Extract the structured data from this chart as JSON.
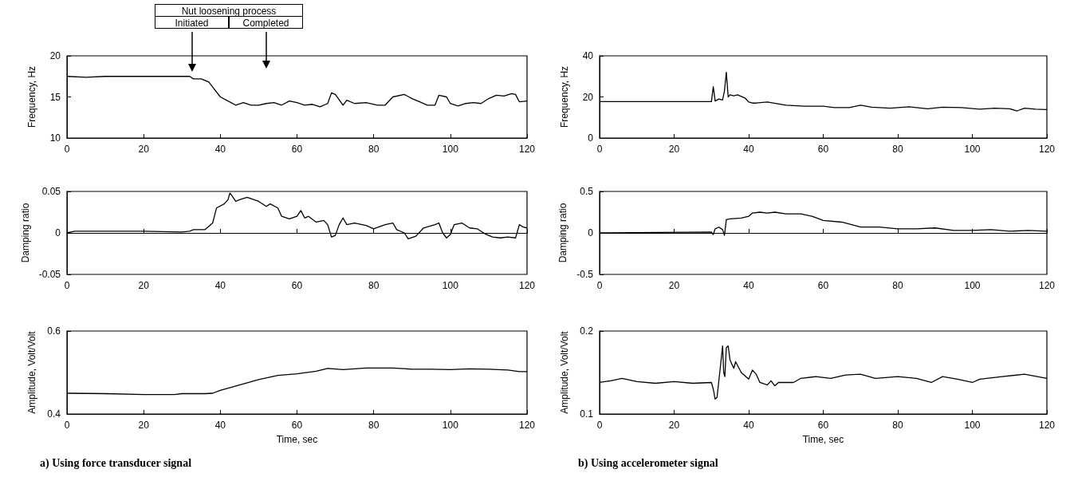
{
  "chart_data": [
    {
      "type": "line",
      "ylabel": "Frequency, Hz",
      "xlim": [
        0,
        120
      ],
      "xticks": [
        0,
        20,
        40,
        60,
        80,
        100,
        120
      ],
      "ylim": [
        10,
        20
      ],
      "yticks": [
        10,
        15,
        20
      ],
      "annotations": [
        "Nut loosening process",
        "Initiated",
        "Completed"
      ],
      "series": [
        {
          "color": "#000000",
          "x": [
            0,
            5,
            10,
            20,
            30,
            32,
            33,
            35,
            37,
            38,
            40,
            42,
            44,
            46,
            48,
            50,
            52,
            54,
            56,
            58,
            60,
            62,
            64,
            66,
            68,
            69,
            70,
            72,
            73,
            75,
            78,
            81,
            83,
            85,
            88,
            90,
            92,
            94,
            96,
            97,
            99,
            100,
            102,
            104,
            106,
            108,
            110,
            112,
            114,
            116,
            117,
            118,
            120
          ],
          "values": [
            17.5,
            17.4,
            17.5,
            17.5,
            17.5,
            17.5,
            17.2,
            17.2,
            16.8,
            16.2,
            15.0,
            14.5,
            14.0,
            14.3,
            14.0,
            14.0,
            14.2,
            14.3,
            14.0,
            14.5,
            14.3,
            14.0,
            14.1,
            13.8,
            14.2,
            15.5,
            15.3,
            14.0,
            14.6,
            14.2,
            14.3,
            14.0,
            14.0,
            15.0,
            15.3,
            14.8,
            14.4,
            14.0,
            14.0,
            15.2,
            15.0,
            14.2,
            13.9,
            14.2,
            14.3,
            14.2,
            14.8,
            15.2,
            15.1,
            15.4,
            15.3,
            14.4,
            14.5
          ]
        }
      ]
    },
    {
      "type": "line",
      "ylabel": "Frequency, Hz",
      "xlim": [
        0,
        120
      ],
      "xticks": [
        0,
        20,
        40,
        60,
        80,
        100,
        120
      ],
      "ylim": [
        0,
        40
      ],
      "yticks": [
        0,
        20,
        40
      ],
      "series": [
        {
          "color": "#000000",
          "x": [
            0,
            30,
            30.5,
            31,
            32,
            33,
            33.5,
            34,
            34.5,
            35,
            36,
            37,
            39,
            40,
            41,
            42,
            45,
            50,
            55,
            60,
            63,
            67,
            70,
            73,
            78,
            83,
            88,
            92,
            97,
            102,
            106,
            110,
            112,
            114,
            117,
            120
          ],
          "values": [
            17.7,
            17.7,
            25,
            18,
            19,
            18.5,
            23,
            32,
            20,
            21,
            20.5,
            21,
            19.5,
            17.5,
            17,
            17,
            17.5,
            16,
            15.5,
            15.5,
            14.8,
            14.8,
            16,
            15,
            14.5,
            15.2,
            14.2,
            15,
            14.8,
            14,
            14.5,
            14.2,
            13.2,
            14.5,
            14,
            13.8
          ]
        }
      ]
    },
    {
      "type": "line",
      "ylabel": "Damping ratio",
      "xlim": [
        0,
        120
      ],
      "xticks": [
        0,
        20,
        40,
        60,
        80,
        100,
        120
      ],
      "ylim": [
        -0.05,
        0.05
      ],
      "yticks": [
        -0.05,
        0,
        0.05
      ],
      "series": [
        {
          "color": "#000000",
          "x": [
            0,
            2,
            10,
            20,
            30,
            32,
            33,
            36,
            37,
            38,
            39,
            41,
            42,
            42.5,
            43,
            44,
            45,
            47,
            50,
            52,
            53,
            55,
            56,
            58,
            60,
            61,
            62,
            63,
            65,
            67,
            68,
            69,
            70,
            71,
            72,
            73,
            75,
            78,
            80,
            83,
            85,
            86,
            88,
            89,
            91,
            93,
            96,
            97,
            98,
            99,
            100,
            101,
            103,
            105,
            107,
            109,
            111,
            113,
            115,
            117,
            118,
            119,
            120
          ],
          "values": [
            0.0,
            0.002,
            0.002,
            0.002,
            0.001,
            0.002,
            0.004,
            0.004,
            0.008,
            0.012,
            0.03,
            0.035,
            0.04,
            0.048,
            0.045,
            0.038,
            0.04,
            0.043,
            0.038,
            0.032,
            0.035,
            0.03,
            0.02,
            0.017,
            0.02,
            0.027,
            0.018,
            0.02,
            0.013,
            0.015,
            0.01,
            -0.005,
            -0.003,
            0.01,
            0.018,
            0.01,
            0.012,
            0.009,
            0.005,
            0.01,
            0.012,
            0.004,
            0.0,
            -0.007,
            -0.004,
            0.006,
            0.01,
            0.012,
            0.0,
            -0.006,
            -0.002,
            0.01,
            0.012,
            0.006,
            0.005,
            -0.001,
            -0.005,
            -0.006,
            -0.005,
            -0.006,
            0.01,
            0.007,
            0.006
          ]
        }
      ]
    },
    {
      "type": "line",
      "ylabel": "Damping ratio",
      "xlim": [
        0,
        120
      ],
      "xticks": [
        0,
        20,
        40,
        60,
        80,
        100,
        120
      ],
      "ylim": [
        -0.5,
        0.5
      ],
      "yticks": [
        -0.5,
        0,
        0.5
      ],
      "series": [
        {
          "color": "#000000",
          "x": [
            0,
            30,
            30.5,
            31,
            32,
            33,
            33.5,
            34,
            35,
            38,
            40,
            41,
            43,
            45,
            47,
            50,
            54,
            57,
            60,
            65,
            70,
            75,
            80,
            85,
            90,
            95,
            100,
            105,
            110,
            115,
            120
          ],
          "values": [
            0,
            0.01,
            -0.02,
            0.05,
            0.07,
            0.04,
            -0.03,
            0.16,
            0.17,
            0.18,
            0.2,
            0.24,
            0.25,
            0.24,
            0.25,
            0.23,
            0.23,
            0.2,
            0.15,
            0.13,
            0.07,
            0.07,
            0.05,
            0.05,
            0.06,
            0.03,
            0.03,
            0.04,
            0.02,
            0.03,
            0.02
          ]
        }
      ]
    },
    {
      "type": "line",
      "ylabel": "Amplitude, Volt/Volt",
      "xlabel": "Time, sec",
      "xlim": [
        0,
        120
      ],
      "xticks": [
        0,
        20,
        40,
        60,
        80,
        100,
        120
      ],
      "ylim": [
        0.4,
        0.6
      ],
      "yticks": [
        0.4,
        0.6
      ],
      "annotations": [
        "a) Using force transducer signal"
      ],
      "series": [
        {
          "color": "#000000",
          "x": [
            0,
            10,
            20,
            28,
            30,
            36,
            38,
            40,
            45,
            50,
            55,
            60,
            65,
            68,
            72,
            78,
            85,
            90,
            95,
            100,
            105,
            110,
            115,
            118,
            120
          ],
          "values": [
            0.45,
            0.449,
            0.447,
            0.447,
            0.449,
            0.449,
            0.45,
            0.457,
            0.47,
            0.483,
            0.493,
            0.497,
            0.503,
            0.51,
            0.507,
            0.511,
            0.511,
            0.508,
            0.508,
            0.507,
            0.509,
            0.508,
            0.506,
            0.502,
            0.502
          ]
        }
      ]
    },
    {
      "type": "line",
      "ylabel": "Amplitude, Volt/Volt",
      "xlabel": "Time, sec",
      "xlim": [
        0,
        120
      ],
      "xticks": [
        0,
        20,
        40,
        60,
        80,
        100,
        120
      ],
      "ylim": [
        0.1,
        0.2
      ],
      "yticks": [
        0.1,
        0.2
      ],
      "annotations": [
        "b) Using accelerometer signal"
      ],
      "series": [
        {
          "color": "#000000",
          "x": [
            0,
            3,
            6,
            10,
            15,
            20,
            25,
            30,
            30.5,
            31,
            31.5,
            32,
            33,
            33.3,
            33.6,
            34,
            34.5,
            35,
            36,
            36.5,
            38,
            40,
            41,
            42,
            43,
            45,
            46,
            47,
            48,
            52,
            54,
            58,
            62,
            66,
            70,
            74,
            80,
            85,
            89,
            92,
            96,
            100,
            102,
            108,
            114,
            120
          ],
          "values": [
            0.138,
            0.14,
            0.143,
            0.139,
            0.137,
            0.139,
            0.137,
            0.138,
            0.13,
            0.118,
            0.12,
            0.14,
            0.182,
            0.15,
            0.145,
            0.18,
            0.182,
            0.165,
            0.155,
            0.163,
            0.15,
            0.142,
            0.153,
            0.148,
            0.138,
            0.135,
            0.14,
            0.134,
            0.138,
            0.138,
            0.143,
            0.145,
            0.143,
            0.147,
            0.148,
            0.143,
            0.145,
            0.143,
            0.138,
            0.145,
            0.142,
            0.138,
            0.142,
            0.145,
            0.148,
            0.143
          ]
        }
      ]
    }
  ]
}
